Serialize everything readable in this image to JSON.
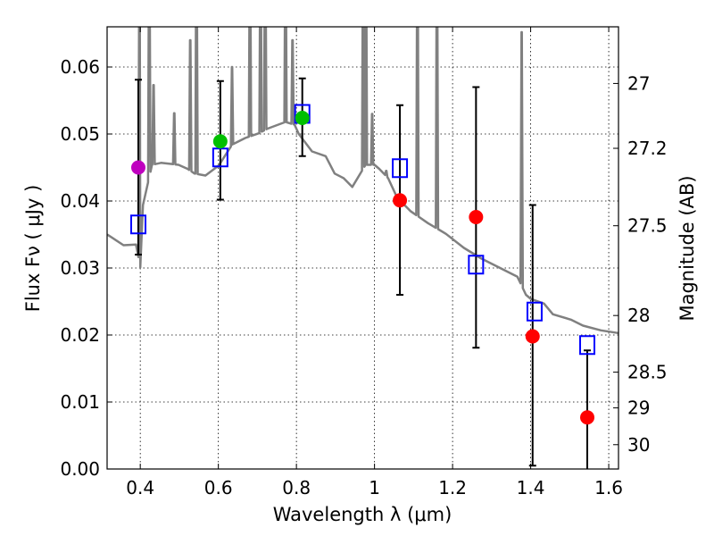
{
  "chart_data": {
    "type": "scatter",
    "xlabel": "Wavelength  λ (μm)",
    "ylabel": "Flux  Fν  ( μJy )",
    "ylabel_right": "Magnitude (AB)",
    "xlim": [
      0.315,
      1.625
    ],
    "ylim": [
      0.0,
      0.066
    ],
    "grid": true,
    "xticks": [
      {
        "v": 0.4,
        "label": "0.4"
      },
      {
        "v": 0.6,
        "label": "0.6"
      },
      {
        "v": 0.8,
        "label": "0.8"
      },
      {
        "v": 1.0,
        "label": "1"
      },
      {
        "v": 1.2,
        "label": "1.2"
      },
      {
        "v": 1.4,
        "label": "1.4"
      },
      {
        "v": 1.6,
        "label": "1.6"
      }
    ],
    "yticks": [
      {
        "v": 0.0,
        "label": "0.00"
      },
      {
        "v": 0.01,
        "label": "0.01"
      },
      {
        "v": 0.02,
        "label": "0.02"
      },
      {
        "v": 0.03,
        "label": "0.03"
      },
      {
        "v": 0.04,
        "label": "0.04"
      },
      {
        "v": 0.05,
        "label": "0.05"
      },
      {
        "v": 0.06,
        "label": "0.06"
      }
    ],
    "mag_zeropoint": 23.9,
    "mag_ticks": [
      {
        "v": 27,
        "label": "27"
      },
      {
        "v": 27.2,
        "label": "27.2"
      },
      {
        "v": 27.5,
        "label": "27.5"
      },
      {
        "v": 28,
        "label": "28"
      },
      {
        "v": 28.5,
        "label": "28.5"
      },
      {
        "v": 29,
        "label": "29"
      },
      {
        "v": 30,
        "label": "30"
      }
    ],
    "photometry": [
      {
        "x": 0.395,
        "y": 0.045,
        "lo": 0.032,
        "hi": 0.0581,
        "color": "#bf00bf"
      },
      {
        "x": 0.605,
        "y": 0.0489,
        "lo": 0.0402,
        "hi": 0.0579,
        "color": "#00bf00"
      },
      {
        "x": 0.815,
        "y": 0.0524,
        "lo": 0.0467,
        "hi": 0.0583,
        "color": "#00bf00"
      },
      {
        "x": 1.065,
        "y": 0.0401,
        "lo": 0.026,
        "hi": 0.0543,
        "color": "#ff0000"
      },
      {
        "x": 1.26,
        "y": 0.0376,
        "lo": 0.0181,
        "hi": 0.057,
        "color": "#ff0000"
      },
      {
        "x": 1.405,
        "y": 0.0198,
        "lo": 0.0005,
        "hi": 0.0394,
        "color": "#ff0000"
      },
      {
        "x": 1.545,
        "y": 0.0077,
        "lo": -0.002,
        "hi": 0.0177,
        "color": "#ff0000"
      }
    ],
    "model_photometry": {
      "color": "#0000ff",
      "points": [
        {
          "x": 0.395,
          "y": 0.0365
        },
        {
          "x": 0.605,
          "y": 0.0465
        },
        {
          "x": 0.815,
          "y": 0.053
        },
        {
          "x": 1.065,
          "y": 0.0449
        },
        {
          "x": 1.26,
          "y": 0.0305
        },
        {
          "x": 1.41,
          "y": 0.0235
        },
        {
          "x": 1.545,
          "y": 0.0185
        }
      ]
    },
    "spectrum": {
      "color": "#808080",
      "continuum": [
        [
          0.3155,
          0.035
        ],
        [
          0.357,
          0.0334
        ],
        [
          0.389,
          0.0335
        ],
        [
          0.4,
          0.0301
        ],
        [
          0.407,
          0.0394
        ],
        [
          0.43,
          0.0454
        ],
        [
          0.453,
          0.0457
        ],
        [
          0.498,
          0.0454
        ],
        [
          0.521,
          0.0448
        ],
        [
          0.539,
          0.0441
        ],
        [
          0.567,
          0.0438
        ],
        [
          0.601,
          0.0453
        ],
        [
          0.635,
          0.0484
        ],
        [
          0.669,
          0.0494
        ],
        [
          0.703,
          0.0501
        ],
        [
          0.726,
          0.0508
        ],
        [
          0.772,
          0.0518
        ],
        [
          0.795,
          0.0514
        ],
        [
          0.806,
          0.05
        ],
        [
          0.84,
          0.0474
        ],
        [
          0.875,
          0.0467
        ],
        [
          0.898,
          0.0441
        ],
        [
          0.921,
          0.0434
        ],
        [
          0.943,
          0.0421
        ],
        [
          0.977,
          0.0454
        ],
        [
          1.0,
          0.0454
        ],
        [
          1.012,
          0.0448
        ],
        [
          1.035,
          0.0434
        ],
        [
          1.058,
          0.0405
        ],
        [
          1.092,
          0.0385
        ],
        [
          1.137,
          0.0367
        ],
        [
          1.183,
          0.0351
        ],
        [
          1.229,
          0.033
        ],
        [
          1.274,
          0.0314
        ],
        [
          1.366,
          0.0287
        ],
        [
          1.388,
          0.026
        ],
        [
          1.4,
          0.0254
        ],
        [
          1.434,
          0.0247
        ],
        [
          1.457,
          0.0231
        ],
        [
          1.503,
          0.0223
        ],
        [
          1.534,
          0.0214
        ],
        [
          1.58,
          0.0207
        ],
        [
          1.624,
          0.0203
        ]
      ],
      "lines": [
        [
          0.398,
          0.08
        ],
        [
          0.423,
          0.08
        ],
        [
          0.434,
          0.0573
        ],
        [
          0.487,
          0.0531
        ],
        [
          0.528,
          0.064
        ],
        [
          0.544,
          0.08
        ],
        [
          0.635,
          0.06
        ],
        [
          0.681,
          0.08
        ],
        [
          0.708,
          0.08
        ],
        [
          0.72,
          0.08
        ],
        [
          0.772,
          0.08
        ],
        [
          0.79,
          0.064
        ],
        [
          0.971,
          0.08
        ],
        [
          0.978,
          0.08
        ],
        [
          0.994,
          0.053
        ],
        [
          1.03,
          0.0445
        ],
        [
          1.11,
          0.08
        ],
        [
          1.16,
          0.08
        ],
        [
          1.377,
          0.0652
        ]
      ]
    }
  }
}
